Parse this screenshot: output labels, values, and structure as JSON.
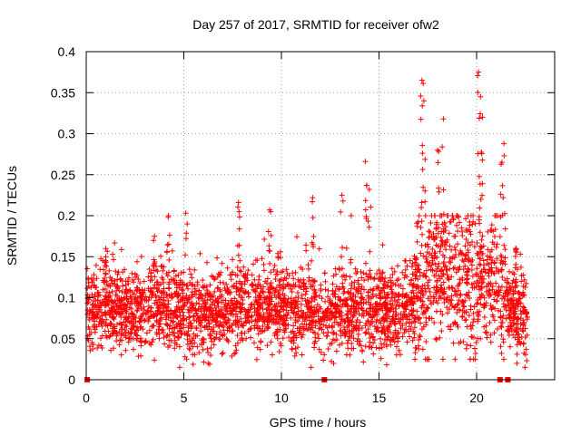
{
  "chart_data": {
    "type": "scatter",
    "title": "Day 257 of 2017, SRMTID for receiver ofw2",
    "xlabel": "GPS time / hours",
    "ylabel": "SRMTID / TECUs",
    "xlim": [
      0,
      24
    ],
    "ylim": [
      0,
      0.4
    ],
    "xticks": [
      0,
      5,
      10,
      15,
      20
    ],
    "yticks": [
      0,
      0.05,
      0.1,
      0.15,
      0.2,
      0.25,
      0.3,
      0.35,
      0.4
    ],
    "ytick_labels": [
      "0",
      "0.05",
      "0.1",
      "0.15",
      "0.2",
      "0.25",
      "0.3",
      "0.35",
      "0.4"
    ],
    "grid": true,
    "marker": "+",
    "color": "#ff0000",
    "x_data_range": [
      0,
      22.6
    ],
    "zero_markers_x": [
      0.05,
      12.2,
      21.2,
      21.6
    ],
    "series": [
      {
        "name": "SRMTID",
        "description": "dense cloud of several thousand points",
        "baseline_profile": [
          [
            0,
            0.085
          ],
          [
            2,
            0.085
          ],
          [
            4,
            0.09
          ],
          [
            6,
            0.075
          ],
          [
            8,
            0.09
          ],
          [
            10,
            0.085
          ],
          [
            12,
            0.08
          ],
          [
            14,
            0.085
          ],
          [
            16,
            0.085
          ],
          [
            17,
            0.1
          ],
          [
            18,
            0.13
          ],
          [
            19,
            0.12
          ],
          [
            20,
            0.11
          ],
          [
            21,
            0.12
          ],
          [
            21.8,
            0.09
          ],
          [
            22.6,
            0.07
          ]
        ],
        "peaks": [
          {
            "x": 1.0,
            "y": 0.16
          },
          {
            "x": 3.5,
            "y": 0.175
          },
          {
            "x": 4.2,
            "y": 0.198
          },
          {
            "x": 5.1,
            "y": 0.203
          },
          {
            "x": 7.8,
            "y": 0.216
          },
          {
            "x": 9.4,
            "y": 0.207
          },
          {
            "x": 11.6,
            "y": 0.222
          },
          {
            "x": 13.1,
            "y": 0.225
          },
          {
            "x": 14.3,
            "y": 0.266
          },
          {
            "x": 14.5,
            "y": 0.232
          },
          {
            "x": 17.2,
            "y": 0.365
          },
          {
            "x": 17.3,
            "y": 0.34
          },
          {
            "x": 18.3,
            "y": 0.318
          },
          {
            "x": 18.0,
            "y": 0.28
          },
          {
            "x": 20.1,
            "y": 0.375
          },
          {
            "x": 20.2,
            "y": 0.345
          },
          {
            "x": 20.3,
            "y": 0.32
          },
          {
            "x": 21.4,
            "y": 0.288
          },
          {
            "x": 21.3,
            "y": 0.265
          },
          {
            "x": 22.0,
            "y": 0.16
          }
        ]
      }
    ]
  }
}
